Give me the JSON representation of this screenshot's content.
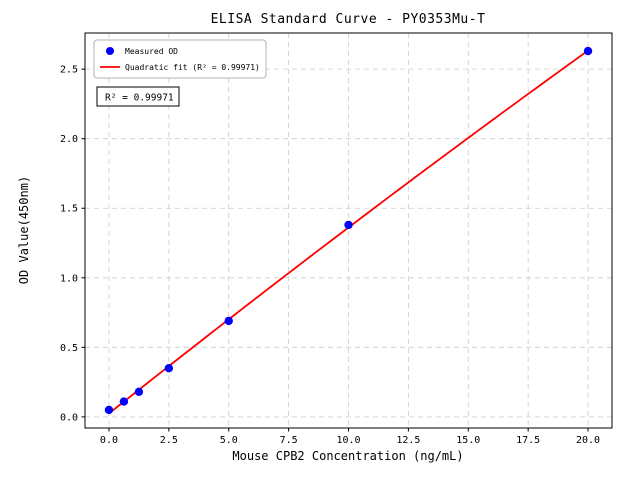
{
  "chart_data": {
    "type": "scatter",
    "title": "ELISA Standard Curve - PY0353Mu-T",
    "xlabel": "Mouse CPB2 Concentration (ng/mL)",
    "ylabel": "OD Value(450nm)",
    "xlim": [
      -1,
      21
    ],
    "ylim": [
      -0.08,
      2.76
    ],
    "x_ticks": [
      0.0,
      2.5,
      5.0,
      7.5,
      10.0,
      12.5,
      15.0,
      17.5,
      20.0
    ],
    "x_tick_labels": [
      "0.0",
      "2.5",
      "5.0",
      "7.5",
      "10.0",
      "12.5",
      "15.0",
      "17.5",
      "20.0"
    ],
    "y_ticks": [
      0.0,
      0.5,
      1.0,
      1.5,
      2.0,
      2.5
    ],
    "y_tick_labels": [
      "0.0",
      "0.5",
      "1.0",
      "1.5",
      "2.0",
      "2.5"
    ],
    "grid": true,
    "grid_color": "#cccccc",
    "legend": {
      "position": "upper left",
      "entries": [
        {
          "label": "Measured OD",
          "marker": "dot",
          "color": "#0000ff"
        },
        {
          "label": "Quadratic fit (R² = 0.99971)",
          "marker": "line",
          "color": "#ff0000"
        }
      ]
    },
    "annotation": "R² = 0.99971",
    "r_squared": "0.99971",
    "series": [
      {
        "name": "Measured OD",
        "type": "scatter",
        "color": "#0000ff",
        "points": [
          [
            0,
            0.05
          ],
          [
            0.625,
            0.11
          ],
          [
            1.25,
            0.18
          ],
          [
            2.5,
            0.35
          ],
          [
            5,
            0.69
          ],
          [
            10,
            1.38
          ],
          [
            20,
            2.63
          ]
        ]
      },
      {
        "name": "Quadratic fit (R² = 0.99971)",
        "type": "line",
        "fit": "quadratic",
        "color": "#ff0000"
      }
    ]
  }
}
